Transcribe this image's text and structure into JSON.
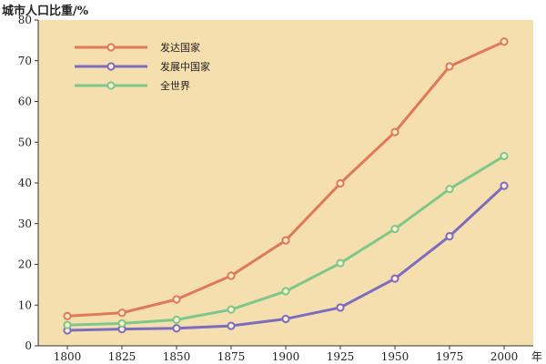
{
  "chart_data": {
    "type": "line",
    "ylabel": "城市人口比重/%",
    "xlabel": "年",
    "x": [
      1800,
      1825,
      1850,
      1875,
      1900,
      1925,
      1950,
      1975,
      2000
    ],
    "ylim": [
      0,
      80
    ],
    "yticks": [
      0,
      10,
      20,
      30,
      40,
      50,
      60,
      70,
      80
    ],
    "grid": false,
    "legend": "top-left",
    "background_color": "#f6dfae",
    "series": [
      {
        "name": "发达国家",
        "color": "#e0785a",
        "values": [
          7.3,
          8.1,
          11.4,
          17.2,
          25.9,
          39.9,
          52.5,
          68.6,
          74.7
        ]
      },
      {
        "name": "发展中国家",
        "color": "#7b6cc0",
        "values": [
          3.8,
          4.1,
          4.3,
          4.9,
          6.6,
          9.4,
          16.5,
          26.9,
          39.3
        ]
      },
      {
        "name": "全世界",
        "color": "#7cc88a",
        "values": [
          5.1,
          5.5,
          6.4,
          8.9,
          13.4,
          20.3,
          28.7,
          38.5,
          46.6
        ]
      }
    ]
  }
}
